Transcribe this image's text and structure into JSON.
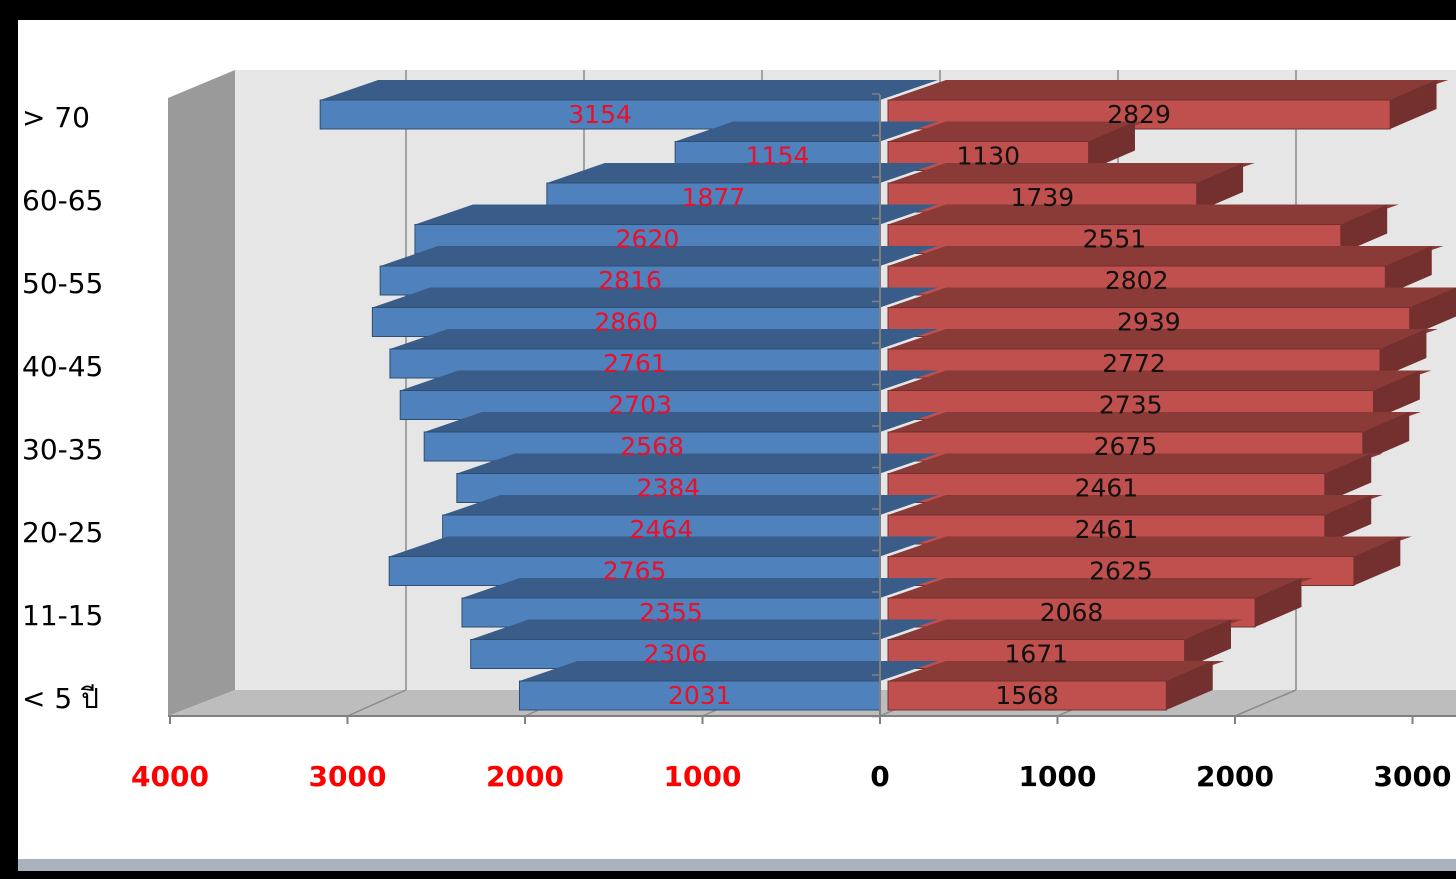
{
  "chart_data": {
    "type": "bar",
    "orientation": "horizontal",
    "style": "3d population pyramid",
    "categories": [
      "> 70",
      "",
      "60-65",
      "",
      "50-55",
      "",
      "40-45",
      "",
      "30-35",
      "",
      "20-25",
      "",
      "11-15",
      "",
      "< 5 ปี"
    ],
    "series": [
      {
        "values": [
          3154,
          1154,
          1877,
          2620,
          2816,
          2860,
          2761,
          2703,
          2568,
          2384,
          2464,
          2765,
          2355,
          2306,
          2031
        ],
        "color": "#4f81bd",
        "label_color": "#e8102a",
        "side": "left"
      },
      {
        "values": [
          2829,
          1130,
          1739,
          2551,
          2802,
          2939,
          2772,
          2735,
          2675,
          2461,
          2461,
          2625,
          2068,
          1671,
          1568
        ],
        "color": "#c0504d",
        "label_color": "#111111",
        "side": "right"
      }
    ],
    "x_ticks_left": [
      "4000",
      "3000",
      "2000",
      "1000"
    ],
    "x_ticks_right": [
      "0",
      "1000",
      "2000",
      "3000"
    ],
    "xlim": [
      -4000,
      3000
    ],
    "grid": true
  }
}
